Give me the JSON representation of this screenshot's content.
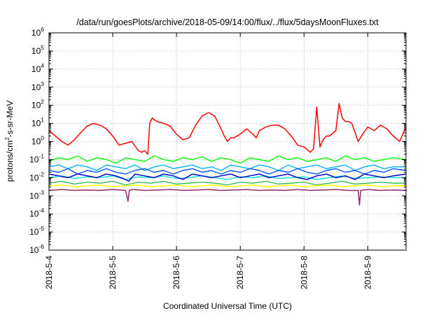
{
  "chart_data": {
    "type": "line",
    "title": "/data/run/goesPlots/archive/2018-05-09/14:00/flux/../flux/5daysMoonFluxes.txt",
    "xlabel": "Coordinated Universal Time (UTC)",
    "ylabel": "protons/cm2-s-sr-MeV",
    "ylabel_parts": {
      "base": "protons/cm",
      "sup": "2",
      "rest": "-s-sr-MeV"
    },
    "x_ticks": [
      "2018-5-4",
      "2018-5-5",
      "2018-5-6",
      "2018-5-7",
      "2018-5-8",
      "2018-5-9"
    ],
    "xlim": [
      0,
      5.6
    ],
    "y_ticks": [
      {
        "base": "10",
        "exp": "-6",
        "value": -6
      },
      {
        "base": "10",
        "exp": "-5",
        "value": -5
      },
      {
        "base": "10",
        "exp": "-4",
        "value": -4
      },
      {
        "base": "10",
        "exp": "-3",
        "value": -3
      },
      {
        "base": "10",
        "exp": "-2",
        "value": -2
      },
      {
        "base": "10",
        "exp": "-1",
        "value": -1
      },
      {
        "base": "10",
        "exp": "0",
        "value": 0
      },
      {
        "base": "10",
        "exp": "1",
        "value": 1
      },
      {
        "base": "10",
        "exp": "2",
        "value": 2
      },
      {
        "base": "10",
        "exp": "3",
        "value": 3
      },
      {
        "base": "10",
        "exp": "4",
        "value": 4
      },
      {
        "base": "10",
        "exp": "5",
        "value": 5
      },
      {
        "base": "10",
        "exp": "6",
        "value": 6
      }
    ],
    "yscale": "log",
    "ylim_log10": [
      -6,
      6
    ],
    "grid": true,
    "legend": "none",
    "series": [
      {
        "color": "#ff0000",
        "width": 1.5,
        "x": [
          0.0,
          0.1,
          0.2,
          0.3,
          0.4,
          0.5,
          0.6,
          0.7,
          0.8,
          0.9,
          1.0,
          1.1,
          1.2,
          1.3,
          1.4,
          1.45,
          1.5,
          1.55,
          1.58,
          1.62,
          1.65,
          1.7,
          1.8,
          1.9,
          2.0,
          2.1,
          2.2,
          2.3,
          2.4,
          2.5,
          2.6,
          2.7,
          2.75,
          2.8,
          2.85,
          2.9,
          3.0,
          3.1,
          3.2,
          3.25,
          3.3,
          3.4,
          3.5,
          3.6,
          3.7,
          3.8,
          3.9,
          4.0,
          4.1,
          4.15,
          4.2,
          4.25,
          4.3,
          4.35,
          4.4,
          4.5,
          4.55,
          4.6,
          4.65,
          4.7,
          4.75,
          4.8,
          4.85,
          4.9,
          5.0,
          5.1,
          5.2,
          5.3,
          5.4,
          5.5,
          5.6
        ],
        "y_log10": [
          0.6,
          0.3,
          0.0,
          -0.2,
          0.1,
          0.5,
          0.85,
          1.0,
          0.9,
          0.7,
          0.3,
          -0.2,
          -0.1,
          0.0,
          -0.5,
          -0.6,
          -0.5,
          -0.7,
          1.0,
          1.3,
          1.2,
          1.1,
          1.0,
          0.85,
          0.4,
          0.1,
          0.2,
          0.9,
          1.4,
          1.6,
          1.4,
          0.7,
          0.3,
          0.0,
          0.2,
          0.2,
          0.4,
          0.7,
          0.4,
          0.2,
          0.6,
          0.8,
          0.9,
          0.9,
          0.7,
          0.3,
          -0.2,
          -0.3,
          -0.6,
          -0.4,
          1.9,
          -0.3,
          0.1,
          0.3,
          0.3,
          0.6,
          2.1,
          1.3,
          1.1,
          1.1,
          1.0,
          0.5,
          0.0,
          0.3,
          0.8,
          0.6,
          0.9,
          0.7,
          0.3,
          0.0,
          0.8
        ]
      },
      {
        "color": "#00ff00",
        "width": 1.4,
        "x": [
          0.0,
          0.15,
          0.3,
          0.45,
          0.6,
          0.75,
          0.9,
          1.05,
          1.2,
          1.35,
          1.5,
          1.65,
          1.8,
          1.95,
          2.1,
          2.25,
          2.4,
          2.55,
          2.7,
          2.85,
          3.0,
          3.15,
          3.3,
          3.45,
          3.6,
          3.75,
          3.9,
          4.05,
          4.2,
          4.35,
          4.5,
          4.65,
          4.8,
          4.95,
          5.1,
          5.25,
          5.4,
          5.6
        ],
        "y_log10": [
          -1.1,
          -0.9,
          -1.0,
          -0.8,
          -1.1,
          -0.9,
          -1.0,
          -1.2,
          -0.9,
          -1.0,
          -1.1,
          -0.8,
          -1.0,
          -1.1,
          -0.9,
          -1.0,
          -0.85,
          -1.1,
          -0.9,
          -1.0,
          -1.2,
          -0.9,
          -1.0,
          -1.1,
          -0.8,
          -1.0,
          -0.9,
          -1.1,
          -1.0,
          -0.9,
          -1.1,
          -0.8,
          -1.0,
          -0.9,
          -1.1,
          -1.0,
          -0.9,
          -1.0
        ]
      },
      {
        "color": "#00b2ff",
        "width": 1.4,
        "x": [
          0.0,
          0.15,
          0.3,
          0.45,
          0.6,
          0.75,
          0.9,
          1.05,
          1.2,
          1.35,
          1.5,
          1.65,
          1.8,
          1.95,
          2.1,
          2.25,
          2.4,
          2.55,
          2.7,
          2.85,
          3.0,
          3.15,
          3.3,
          3.45,
          3.6,
          3.75,
          3.9,
          4.05,
          4.2,
          4.35,
          4.5,
          4.65,
          4.8,
          4.95,
          5.1,
          5.25,
          5.4,
          5.6
        ],
        "y_log10": [
          -1.4,
          -1.3,
          -1.5,
          -1.3,
          -1.4,
          -1.6,
          -1.3,
          -1.4,
          -1.5,
          -1.3,
          -1.6,
          -1.4,
          -1.3,
          -1.5,
          -1.4,
          -1.3,
          -1.5,
          -1.4,
          -1.6,
          -1.3,
          -1.4,
          -1.5,
          -1.3,
          -1.4,
          -1.6,
          -1.3,
          -1.5,
          -1.4,
          -1.3,
          -1.5,
          -1.4,
          -1.3,
          -1.6,
          -1.4,
          -1.3,
          -1.5,
          -1.4,
          -1.4
        ]
      },
      {
        "color": "#0055ff",
        "width": 1.4,
        "x": [
          0.0,
          0.15,
          0.3,
          0.45,
          0.6,
          0.75,
          0.9,
          1.05,
          1.2,
          1.35,
          1.5,
          1.65,
          1.8,
          1.95,
          2.1,
          2.25,
          2.4,
          2.55,
          2.7,
          2.85,
          3.0,
          3.15,
          3.3,
          3.45,
          3.6,
          3.75,
          3.9,
          4.05,
          4.2,
          4.35,
          4.5,
          4.65,
          4.8,
          4.95,
          5.1,
          5.25,
          5.4,
          5.6
        ],
        "y_log10": [
          -1.6,
          -1.7,
          -1.5,
          -1.8,
          -1.6,
          -1.7,
          -1.5,
          -1.7,
          -1.8,
          -1.6,
          -1.5,
          -1.7,
          -1.6,
          -1.8,
          -1.6,
          -1.5,
          -1.7,
          -1.6,
          -1.8,
          -1.6,
          -1.7,
          -1.5,
          -1.6,
          -1.8,
          -1.6,
          -1.7,
          -1.5,
          -1.7,
          -1.8,
          -1.6,
          -1.5,
          -1.7,
          -1.6,
          -1.8,
          -1.6,
          -1.7,
          -1.5,
          -1.6
        ]
      },
      {
        "color": "#00e5d8",
        "width": 1.3,
        "x": [
          0.0,
          0.2,
          0.4,
          0.6,
          0.8,
          1.0,
          1.2,
          1.4,
          1.6,
          1.8,
          2.0,
          2.2,
          2.4,
          2.6,
          2.8,
          3.0,
          3.2,
          3.4,
          3.6,
          3.8,
          4.0,
          4.2,
          4.4,
          4.6,
          4.8,
          5.0,
          5.2,
          5.4,
          5.6
        ],
        "y_log10": [
          -2.0,
          -1.9,
          -2.05,
          -1.95,
          -2.0,
          -1.9,
          -2.1,
          -1.95,
          -2.0,
          -1.9,
          -2.05,
          -2.0,
          -1.9,
          -2.0,
          -2.1,
          -1.95,
          -2.0,
          -1.9,
          -2.05,
          -2.0,
          -1.95,
          -2.1,
          -2.0,
          -1.9,
          -2.05,
          -2.0,
          -1.95,
          -2.0,
          -2.0
        ]
      },
      {
        "color": "#0000cc",
        "width": 1.5,
        "x": [
          0.0,
          0.15,
          0.3,
          0.45,
          0.6,
          0.75,
          0.9,
          1.05,
          1.2,
          1.25,
          1.35,
          1.5,
          1.65,
          1.8,
          1.95,
          2.1,
          2.25,
          2.4,
          2.55,
          2.7,
          2.85,
          3.0,
          3.15,
          3.3,
          3.45,
          3.6,
          3.75,
          3.9,
          4.05,
          4.2,
          4.35,
          4.5,
          4.65,
          4.8,
          4.95,
          5.1,
          5.25,
          5.4,
          5.6
        ],
        "y_log10": [
          -1.8,
          -1.9,
          -2.0,
          -1.8,
          -1.9,
          -2.0,
          -1.8,
          -1.9,
          -2.1,
          -2.2,
          -1.8,
          -1.9,
          -2.0,
          -1.8,
          -1.9,
          -2.1,
          -1.8,
          -1.9,
          -2.0,
          -1.9,
          -1.8,
          -2.0,
          -1.9,
          -1.8,
          -2.0,
          -1.9,
          -1.8,
          -2.0,
          -2.1,
          -1.9,
          -1.8,
          -2.0,
          -1.9,
          -2.1,
          -1.8,
          -1.9,
          -2.0,
          -1.9,
          -1.8
        ]
      },
      {
        "color": "#20b040",
        "width": 1.2,
        "x": [
          0.0,
          0.2,
          0.4,
          0.6,
          0.8,
          1.0,
          1.2,
          1.4,
          1.6,
          1.8,
          2.0,
          2.2,
          2.4,
          2.6,
          2.8,
          3.0,
          3.2,
          3.4,
          3.6,
          3.8,
          4.0,
          4.2,
          4.4,
          4.6,
          4.8,
          5.0,
          5.2,
          5.4,
          5.6
        ],
        "y_log10": [
          -2.3,
          -2.2,
          -2.35,
          -2.25,
          -2.3,
          -2.2,
          -2.4,
          -2.25,
          -2.3,
          -2.2,
          -2.35,
          -2.3,
          -2.25,
          -2.3,
          -2.4,
          -2.25,
          -2.3,
          -2.2,
          -2.35,
          -2.3,
          -2.25,
          -2.4,
          -2.3,
          -2.2,
          -2.35,
          -2.3,
          -2.25,
          -2.3,
          -2.3
        ]
      },
      {
        "color": "#ffff00",
        "width": 1.5,
        "x": [
          0.0,
          0.2,
          0.4,
          0.6,
          0.8,
          1.0,
          1.2,
          1.4,
          1.6,
          1.8,
          2.0,
          2.2,
          2.4,
          2.6,
          2.8,
          3.0,
          3.2,
          3.4,
          3.6,
          3.8,
          4.0,
          4.2,
          4.4,
          4.6,
          4.8,
          5.0,
          5.2,
          5.4,
          5.6
        ],
        "y_log10": [
          -2.45,
          -2.4,
          -2.5,
          -2.45,
          -2.4,
          -2.5,
          -2.45,
          -2.4,
          -2.5,
          -2.45,
          -2.4,
          -2.5,
          -2.45,
          -2.4,
          -2.5,
          -2.45,
          -2.4,
          -2.5,
          -2.45,
          -2.4,
          -2.5,
          -2.45,
          -2.4,
          -2.5,
          -2.45,
          -2.4,
          -2.5,
          -2.45,
          -2.45
        ]
      },
      {
        "color": "#8e2a6e",
        "width": 1.5,
        "x": [
          0.0,
          0.2,
          0.4,
          0.6,
          0.8,
          1.0,
          1.2,
          1.24,
          1.26,
          1.3,
          1.5,
          1.7,
          1.9,
          2.1,
          2.3,
          2.5,
          2.7,
          2.9,
          3.1,
          3.3,
          3.5,
          3.7,
          3.9,
          4.1,
          4.3,
          4.5,
          4.7,
          4.85,
          4.87,
          4.89,
          5.0,
          5.2,
          5.4,
          5.6
        ],
        "y_log10": [
          -2.7,
          -2.65,
          -2.7,
          -2.68,
          -2.7,
          -2.65,
          -2.7,
          -3.3,
          -2.7,
          -2.65,
          -2.7,
          -2.68,
          -2.65,
          -2.7,
          -2.68,
          -2.65,
          -2.7,
          -2.68,
          -2.65,
          -2.7,
          -2.68,
          -2.7,
          -2.65,
          -2.7,
          -2.68,
          -2.65,
          -2.7,
          -2.7,
          -3.5,
          -2.7,
          -2.65,
          -2.7,
          -2.68,
          -2.7
        ]
      }
    ]
  }
}
